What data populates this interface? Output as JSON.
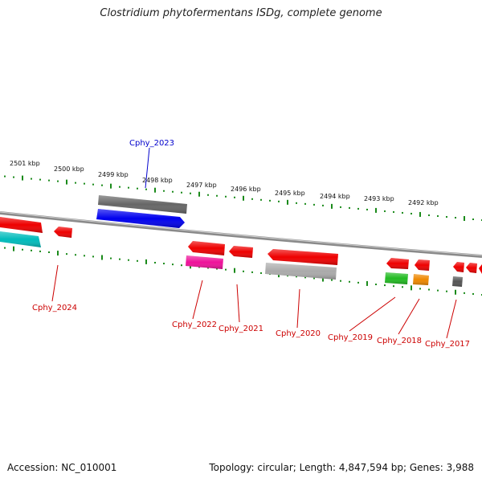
{
  "title": "Clostridium phytofermentans ISDg, complete genome",
  "footer": {
    "accession": "Accession: NC_010001",
    "summary": "Topology: circular; Length: 4,847,594 bp; Genes: 3,988"
  },
  "colors": {
    "backbone": "#8a8a8a",
    "tick": "#1a8a1a",
    "label_red": "#cc0000",
    "label_blue": "#0000cc"
  },
  "kbp_labels": [
    "2501 kbp",
    "2500 kbp",
    "2499 kbp",
    "2498 kbp",
    "2497 kbp",
    "2496 kbp",
    "2495 kbp",
    "2494 kbp",
    "2493 kbp",
    "2492 kbp"
  ],
  "gene_labels": [
    {
      "name": "Cphy_2023",
      "color": "#0000cc"
    },
    {
      "name": "Cphy_2024",
      "color": "#cc0000"
    },
    {
      "name": "Cphy_2022",
      "color": "#cc0000"
    },
    {
      "name": "Cphy_2021",
      "color": "#cc0000"
    },
    {
      "name": "Cphy_2020",
      "color": "#cc0000"
    },
    {
      "name": "Cphy_2019",
      "color": "#cc0000"
    },
    {
      "name": "Cphy_2018",
      "color": "#cc0000"
    },
    {
      "name": "Cphy_2017",
      "color": "#cc0000"
    }
  ],
  "features": [
    {
      "name": "grey-upper-2023",
      "color": "#666666"
    },
    {
      "name": "blue-cds-2023",
      "color": "#0000ee"
    },
    {
      "name": "red-cds-2024a",
      "color": "#ee0000"
    },
    {
      "name": "cyan-cds-2024",
      "color": "#00bbbb"
    },
    {
      "name": "red-cds-2024b",
      "color": "#ee0000"
    },
    {
      "name": "red-cds-2022",
      "color": "#ee0000"
    },
    {
      "name": "magenta-cds-2022",
      "color": "#ee1199"
    },
    {
      "name": "red-cds-2021",
      "color": "#ee0000"
    },
    {
      "name": "red-cds-2020",
      "color": "#ee0000"
    },
    {
      "name": "silver-cds-2020",
      "color": "#aaaaaa"
    },
    {
      "name": "red-cds-2019",
      "color": "#ee0000"
    },
    {
      "name": "green-cds-2019",
      "color": "#22bb22"
    },
    {
      "name": "red-cds-2018",
      "color": "#ee0000"
    },
    {
      "name": "orange-cds-2018",
      "color": "#ee8800"
    },
    {
      "name": "grey-cds-2017",
      "color": "#555555"
    },
    {
      "name": "red-cds-2017a",
      "color": "#ee0000"
    },
    {
      "name": "red-cds-2017b",
      "color": "#ee0000"
    },
    {
      "name": "red-cds-2017c",
      "color": "#ee0000"
    }
  ]
}
